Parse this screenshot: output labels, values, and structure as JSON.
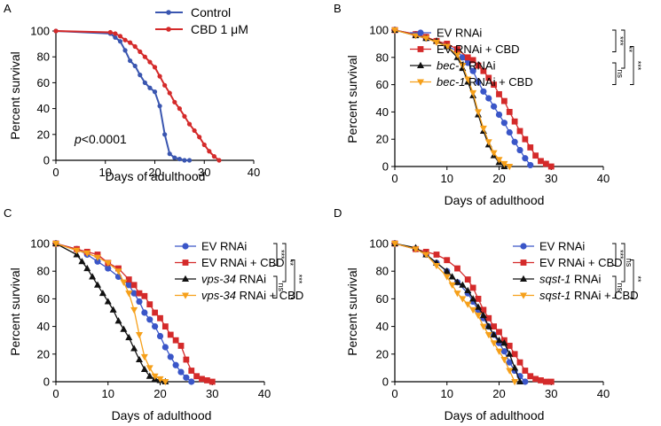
{
  "chart_data": [
    {
      "panel": "A",
      "type": "line",
      "xlabel": "Days of adulthood",
      "ylabel": "Percent survival",
      "xlim": [
        0,
        40
      ],
      "ylim": [
        0,
        100
      ],
      "xticks": [
        "0",
        "10",
        "20",
        "30",
        "40"
      ],
      "yticks": [
        "0",
        "20",
        "40",
        "60",
        "80",
        "100"
      ],
      "annotation_prefix": "p",
      "annotation_value": "<0.0001",
      "series": [
        {
          "name": "Control",
          "color": "#3a56b0",
          "marker": "dot",
          "x": [
            0,
            11,
            12,
            13,
            14,
            15,
            16,
            17,
            18,
            19,
            20,
            21,
            22,
            23,
            24,
            25,
            26,
            27
          ],
          "y": [
            100,
            98,
            95,
            92,
            85,
            77,
            73,
            66,
            60,
            56,
            53,
            42,
            20,
            5,
            2,
            1,
            0,
            0
          ]
        },
        {
          "name": "CBD 1 μM",
          "color": "#d42a2a",
          "marker": "dot",
          "x": [
            0,
            11,
            12,
            13,
            14,
            15,
            16,
            17,
            18,
            19,
            20,
            21,
            22,
            23,
            24,
            25,
            26,
            27,
            28,
            29,
            30,
            31,
            32,
            33
          ],
          "y": [
            100,
            99,
            98,
            96,
            93,
            91,
            88,
            84,
            80,
            76,
            72,
            65,
            58,
            52,
            45,
            40,
            34,
            28,
            23,
            18,
            12,
            7,
            3,
            0
          ]
        }
      ]
    },
    {
      "panel": "B",
      "type": "line",
      "xlabel": "Days of adulthood",
      "ylabel": "Percent survival",
      "xlim": [
        0,
        40
      ],
      "ylim": [
        0,
        100
      ],
      "xticks": [
        "0",
        "10",
        "20",
        "30",
        "40"
      ],
      "yticks": [
        "0",
        "20",
        "40",
        "60",
        "80",
        "100"
      ],
      "series": [
        {
          "name": "EV RNAi",
          "italic_part": "",
          "rest": "EV RNAi",
          "color": "#3a56c8",
          "marker": "circle",
          "x": [
            0,
            4,
            6,
            8,
            10,
            12,
            13,
            14,
            15,
            16,
            17,
            18,
            19,
            20,
            21,
            22,
            23,
            24,
            25,
            26
          ],
          "y": [
            100,
            97,
            94,
            92,
            88,
            85,
            80,
            76,
            70,
            62,
            55,
            50,
            44,
            38,
            32,
            25,
            18,
            12,
            6,
            1
          ]
        },
        {
          "name": "EV RNAi + CBD",
          "italic_part": "",
          "rest": "EV RNAi + CBD",
          "color": "#d42a2a",
          "marker": "square",
          "x": [
            0,
            4,
            6,
            8,
            10,
            12,
            14,
            15,
            16,
            17,
            18,
            19,
            20,
            21,
            22,
            23,
            24,
            25,
            26,
            27,
            28,
            29,
            30
          ],
          "y": [
            100,
            97,
            95,
            92,
            90,
            86,
            80,
            78,
            74,
            70,
            65,
            60,
            53,
            48,
            40,
            33,
            26,
            20,
            14,
            8,
            4,
            2,
            0
          ]
        },
        {
          "name": "bec-1 RNAi",
          "italic_part": "bec-1",
          "rest": " RNAi",
          "color": "#111111",
          "marker": "triangle",
          "x": [
            0,
            4,
            6,
            8,
            10,
            12,
            13,
            14,
            15,
            16,
            17,
            18,
            19,
            20,
            21
          ],
          "y": [
            100,
            96,
            94,
            92,
            88,
            80,
            72,
            62,
            52,
            38,
            26,
            16,
            8,
            3,
            0
          ]
        },
        {
          "name": "bec-1 RNAi + CBD",
          "italic_part": "bec-1",
          "rest": " RNAi + CBD",
          "color": "#f6a01a",
          "marker": "triangle-down",
          "x": [
            0,
            4,
            6,
            8,
            10,
            12,
            13,
            14,
            15,
            16,
            17,
            18,
            19,
            20,
            21,
            22
          ],
          "y": [
            100,
            96,
            94,
            91,
            88,
            82,
            74,
            64,
            54,
            40,
            28,
            18,
            10,
            5,
            2,
            0
          ]
        }
      ],
      "significance": [
        "***",
        "**",
        "ns",
        "***"
      ]
    },
    {
      "panel": "C",
      "type": "line",
      "xlabel": "Days of adulthood",
      "ylabel": "Percent survival",
      "xlim": [
        0,
        40
      ],
      "ylim": [
        0,
        100
      ],
      "xticks": [
        "0",
        "10",
        "20",
        "30",
        "40"
      ],
      "yticks": [
        "0",
        "20",
        "40",
        "60",
        "80",
        "100"
      ],
      "series": [
        {
          "name": "EV RNAi",
          "italic_part": "",
          "rest": "EV RNAi",
          "color": "#3a56c8",
          "marker": "circle",
          "x": [
            0,
            4,
            6,
            8,
            10,
            12,
            14,
            15,
            16,
            17,
            18,
            19,
            20,
            21,
            22,
            23,
            24,
            25,
            26
          ],
          "y": [
            100,
            96,
            92,
            87,
            82,
            76,
            70,
            64,
            58,
            50,
            45,
            40,
            33,
            25,
            18,
            12,
            7,
            3,
            0
          ]
        },
        {
          "name": "EV RNAi + CBD",
          "italic_part": "",
          "rest": "EV RNAi + CBD",
          "color": "#d42a2a",
          "marker": "square",
          "x": [
            0,
            4,
            6,
            8,
            10,
            12,
            14,
            15,
            16,
            17,
            18,
            19,
            20,
            21,
            22,
            23,
            24,
            25,
            26,
            27,
            28,
            29,
            30
          ],
          "y": [
            100,
            96,
            94,
            92,
            86,
            82,
            74,
            70,
            64,
            62,
            56,
            50,
            46,
            40,
            34,
            30,
            26,
            16,
            8,
            4,
            2,
            1,
            0
          ]
        },
        {
          "name": "vps-34 RNAi",
          "italic_part": "vps-34",
          "rest": " RNAi",
          "color": "#111111",
          "marker": "triangle",
          "x": [
            0,
            4,
            5,
            6,
            7,
            8,
            9,
            10,
            11,
            12,
            13,
            14,
            15,
            16,
            17,
            18,
            19,
            20,
            21
          ],
          "y": [
            100,
            92,
            87,
            82,
            76,
            70,
            64,
            58,
            52,
            44,
            38,
            32,
            24,
            16,
            9,
            4,
            2,
            1,
            0
          ]
        },
        {
          "name": "vps-34 RNAi + CBD",
          "italic_part": "vps-34",
          "rest": " RNAi + CBD",
          "color": "#f6a01a",
          "marker": "triangle-down",
          "x": [
            0,
            4,
            6,
            8,
            10,
            12,
            13,
            14,
            15,
            16,
            17,
            18,
            19,
            20,
            21
          ],
          "y": [
            100,
            95,
            93,
            90,
            86,
            80,
            72,
            64,
            52,
            34,
            18,
            10,
            4,
            2,
            0
          ]
        }
      ],
      "significance": [
        "***",
        "**",
        "ns",
        "***"
      ]
    },
    {
      "panel": "D",
      "type": "line",
      "xlabel": "Days of adulthood",
      "ylabel": "Percent survival",
      "xlim": [
        0,
        40
      ],
      "ylim": [
        0,
        100
      ],
      "xticks": [
        "0",
        "10",
        "20",
        "30",
        "40"
      ],
      "yticks": [
        "0",
        "20",
        "40",
        "60",
        "80",
        "100"
      ],
      "series": [
        {
          "name": "EV RNAi",
          "italic_part": "",
          "rest": "EV RNAi",
          "color": "#3a56c8",
          "marker": "circle",
          "x": [
            0,
            4,
            6,
            8,
            10,
            12,
            14,
            15,
            16,
            17,
            18,
            19,
            20,
            21,
            22,
            23,
            24,
            25
          ],
          "y": [
            100,
            96,
            92,
            86,
            80,
            72,
            64,
            58,
            52,
            46,
            40,
            34,
            28,
            22,
            14,
            8,
            4,
            0
          ]
        },
        {
          "name": "EV RNAi + CBD",
          "italic_part": "",
          "rest": "EV RNAi + CBD",
          "color": "#d42a2a",
          "marker": "square",
          "x": [
            0,
            4,
            6,
            8,
            10,
            12,
            14,
            15,
            16,
            17,
            18,
            19,
            20,
            21,
            22,
            23,
            24,
            25,
            26,
            27,
            28,
            29,
            30
          ],
          "y": [
            100,
            96,
            94,
            92,
            88,
            82,
            74,
            68,
            60,
            52,
            46,
            40,
            36,
            30,
            26,
            20,
            14,
            8,
            4,
            2,
            1,
            0,
            0
          ]
        },
        {
          "name": "sqst-1 RNAi",
          "italic_part": "sqst-1",
          "rest": " RNAi",
          "color": "#111111",
          "marker": "triangle",
          "x": [
            0,
            4,
            6,
            8,
            10,
            11,
            12,
            13,
            14,
            15,
            16,
            17,
            18,
            19,
            20,
            21,
            22,
            23,
            24
          ],
          "y": [
            100,
            97,
            92,
            86,
            80,
            76,
            72,
            70,
            66,
            60,
            54,
            48,
            40,
            34,
            30,
            28,
            20,
            10,
            0
          ]
        },
        {
          "name": "sqst-1 RNAi + CBD",
          "italic_part": "sqst-1",
          "rest": " RNAi + CBD",
          "color": "#f6a01a",
          "marker": "triangle-down",
          "x": [
            0,
            4,
            6,
            8,
            10,
            11,
            12,
            13,
            14,
            15,
            16,
            17,
            18,
            19,
            20,
            21,
            22,
            23
          ],
          "y": [
            100,
            96,
            92,
            84,
            76,
            70,
            64,
            60,
            56,
            52,
            48,
            40,
            34,
            28,
            22,
            16,
            8,
            0
          ]
        }
      ],
      "significance": [
        "***",
        "ns",
        "ns",
        "**"
      ]
    }
  ]
}
